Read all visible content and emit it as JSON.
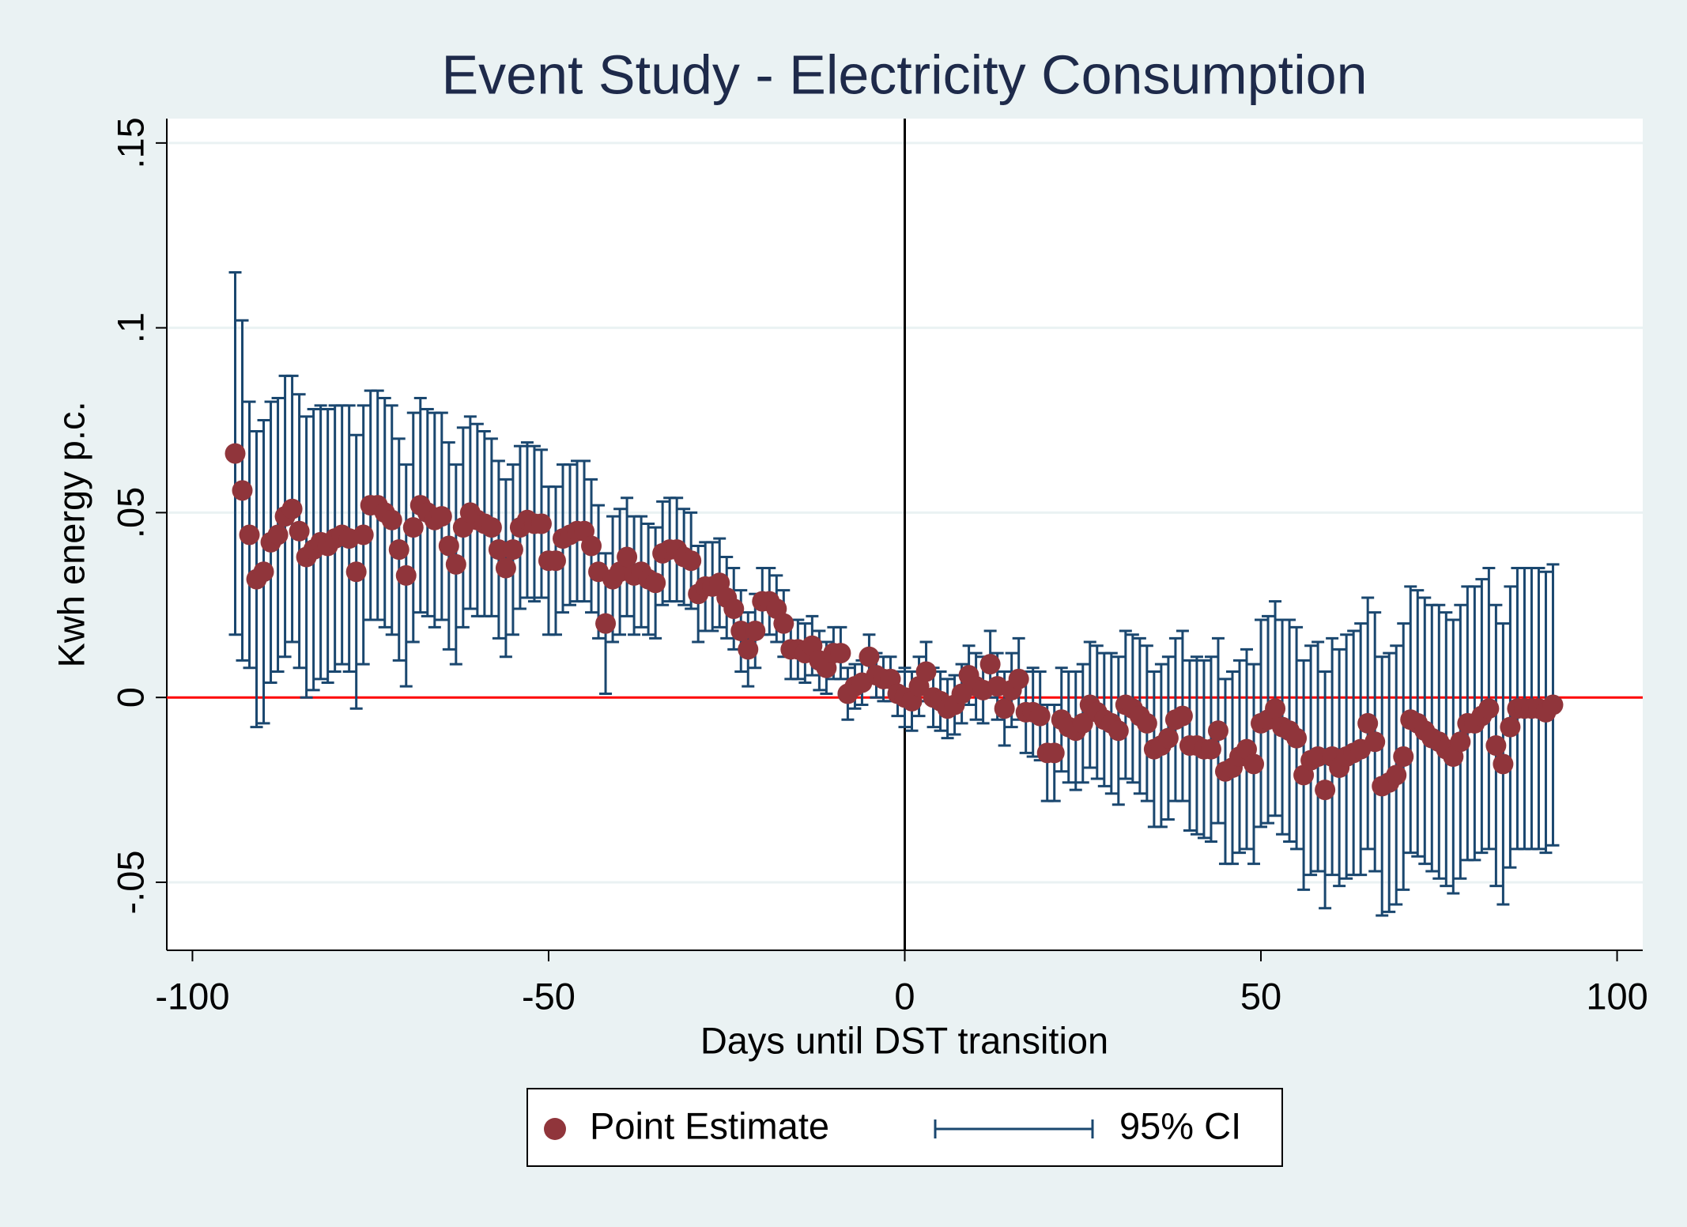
{
  "chart_data": {
    "type": "errorbar-scatter",
    "title": "Event Study - Electricity Consumption",
    "x_label": "Days until DST transition",
    "y_label": "Kwh energy p.c.",
    "xlim": [
      -103.6,
      103.6
    ],
    "xticks": [
      -100,
      -50,
      0,
      50,
      100
    ],
    "ylim": [
      -0.0684,
      0.1566
    ],
    "yticks": [
      {
        "value": -0.05,
        "label": "-.05"
      },
      0,
      {
        "value": 0.05,
        "label": ".05"
      },
      {
        "value": 0.1,
        "label": ".1"
      },
      {
        "value": 0.15,
        "label": ".15"
      }
    ],
    "grid": true,
    "reference_lines": {
      "x": 0,
      "x_color": "#000000",
      "y": 0,
      "y_color": "#ff0000"
    },
    "legend": "bottom",
    "x": [
      -94,
      -93,
      -92,
      -91,
      -90,
      -89,
      -88,
      -87,
      -86,
      -85,
      -84,
      -83,
      -82,
      -81,
      -80,
      -79,
      -78,
      -77,
      -76,
      -75,
      -74,
      -73,
      -72,
      -71,
      -70,
      -69,
      -68,
      -67,
      -66,
      -65,
      -64,
      -63,
      -62,
      -61,
      -60,
      -59,
      -58,
      -57,
      -56,
      -55,
      -54,
      -53,
      -52,
      -51,
      -50,
      -49,
      -48,
      -47,
      -46,
      -45,
      -44,
      -43,
      -42,
      -41,
      -40,
      -39,
      -38,
      -37,
      -36,
      -35,
      -34,
      -33,
      -32,
      -31,
      -30,
      -29,
      -28,
      -27,
      -26,
      -25,
      -24,
      -23,
      -22,
      -21,
      -20,
      -19,
      -18,
      -17,
      -16,
      -15,
      -14,
      -13,
      -12,
      -11,
      -10,
      -9,
      -8,
      -7,
      -6,
      -5,
      -4,
      -3,
      -2,
      -1,
      0,
      1,
      2,
      3,
      4,
      5,
      6,
      7,
      8,
      9,
      10,
      11,
      12,
      13,
      14,
      15,
      16,
      17,
      18,
      19,
      20,
      21,
      22,
      23,
      24,
      25,
      26,
      27,
      28,
      29,
      30,
      31,
      32,
      33,
      34,
      35,
      36,
      37,
      38,
      39,
      40,
      41,
      42,
      43,
      44,
      45,
      46,
      47,
      48,
      49,
      50,
      51,
      52,
      53,
      54,
      55,
      56,
      57,
      58,
      59,
      60,
      61,
      62,
      63,
      64,
      65,
      66,
      67,
      68,
      69,
      70,
      71,
      72,
      73,
      74,
      75,
      76,
      77,
      78,
      79,
      80,
      81,
      82,
      83,
      84,
      85,
      86,
      87,
      88,
      89,
      90,
      91
    ],
    "series": [
      {
        "name": "Point Estimate",
        "color": "#90353b",
        "error_name": "95% CI",
        "error_color": "#1a476f",
        "values": [
          0.066,
          0.056,
          0.044,
          0.032,
          0.034,
          0.042,
          0.044,
          0.049,
          0.051,
          0.045,
          0.038,
          0.04,
          0.042,
          0.041,
          0.043,
          0.044,
          0.043,
          0.034,
          0.044,
          0.052,
          0.052,
          0.05,
          0.048,
          0.04,
          0.033,
          0.046,
          0.052,
          0.05,
          0.048,
          0.049,
          0.041,
          0.036,
          0.046,
          0.05,
          0.048,
          0.047,
          0.046,
          0.04,
          0.035,
          0.04,
          0.046,
          0.048,
          0.047,
          0.047,
          0.037,
          0.037,
          0.043,
          0.044,
          0.045,
          0.045,
          0.041,
          0.034,
          0.02,
          0.032,
          0.034,
          0.038,
          0.033,
          0.034,
          0.032,
          0.031,
          0.039,
          0.04,
          0.04,
          0.038,
          0.037,
          0.028,
          0.03,
          0.03,
          0.031,
          0.027,
          0.024,
          0.018,
          0.013,
          0.018,
          0.026,
          0.026,
          0.024,
          0.02,
          0.013,
          0.013,
          0.012,
          0.014,
          0.01,
          0.008,
          0.012,
          0.012,
          0.001,
          0.003,
          0.004,
          0.011,
          0.006,
          0.005,
          0.005,
          0.001,
          0.0,
          -0.001,
          0.003,
          0.007,
          0.0,
          -0.001,
          -0.003,
          -0.002,
          0.001,
          0.006,
          0.003,
          0.002,
          0.009,
          0.003,
          -0.003,
          0.002,
          0.005,
          -0.004,
          -0.004,
          -0.005,
          -0.015,
          -0.015,
          -0.006,
          -0.008,
          -0.009,
          -0.007,
          -0.002,
          -0.004,
          -0.006,
          -0.007,
          -0.009,
          -0.002,
          -0.003,
          -0.005,
          -0.007,
          -0.014,
          -0.013,
          -0.011,
          -0.006,
          -0.005,
          -0.013,
          -0.013,
          -0.014,
          -0.014,
          -0.009,
          -0.02,
          -0.019,
          -0.016,
          -0.014,
          -0.018,
          -0.007,
          -0.006,
          -0.003,
          -0.008,
          -0.009,
          -0.011,
          -0.021,
          -0.017,
          -0.016,
          -0.025,
          -0.016,
          -0.019,
          -0.016,
          -0.015,
          -0.014,
          -0.007,
          -0.012,
          -0.024,
          -0.023,
          -0.021,
          -0.016,
          -0.006,
          -0.007,
          -0.009,
          -0.011,
          -0.012,
          -0.014,
          -0.016,
          -0.012,
          -0.007,
          -0.007,
          -0.005,
          -0.003,
          -0.013,
          -0.018,
          -0.008,
          -0.003,
          -0.003,
          -0.003,
          -0.003,
          -0.004,
          -0.002
        ],
        "errors": [
          0.049,
          0.046,
          0.036,
          0.04,
          0.041,
          0.038,
          0.037,
          0.038,
          0.036,
          0.037,
          0.038,
          0.038,
          0.037,
          0.037,
          0.036,
          0.035,
          0.036,
          0.037,
          0.035,
          0.031,
          0.031,
          0.031,
          0.031,
          0.03,
          0.03,
          0.031,
          0.029,
          0.028,
          0.029,
          0.028,
          0.028,
          0.027,
          0.027,
          0.026,
          0.026,
          0.025,
          0.024,
          0.024,
          0.024,
          0.023,
          0.022,
          0.021,
          0.021,
          0.02,
          0.02,
          0.02,
          0.02,
          0.019,
          0.019,
          0.019,
          0.018,
          0.018,
          0.019,
          0.017,
          0.017,
          0.016,
          0.016,
          0.015,
          0.015,
          0.015,
          0.014,
          0.014,
          0.014,
          0.013,
          0.013,
          0.013,
          0.012,
          0.012,
          0.012,
          0.011,
          0.011,
          0.011,
          0.01,
          0.01,
          0.009,
          0.009,
          0.009,
          0.009,
          0.008,
          0.008,
          0.008,
          0.008,
          0.008,
          0.007,
          0.007,
          0.007,
          0.007,
          0.006,
          0.006,
          0.006,
          0.006,
          0.006,
          0.006,
          0.006,
          0.008,
          0.008,
          0.008,
          0.008,
          0.008,
          0.008,
          0.008,
          0.008,
          0.008,
          0.008,
          0.009,
          0.009,
          0.009,
          0.009,
          0.01,
          0.01,
          0.011,
          0.011,
          0.012,
          0.012,
          0.013,
          0.013,
          0.014,
          0.015,
          0.016,
          0.016,
          0.017,
          0.018,
          0.018,
          0.019,
          0.02,
          0.02,
          0.02,
          0.021,
          0.021,
          0.021,
          0.022,
          0.022,
          0.022,
          0.023,
          0.023,
          0.024,
          0.024,
          0.025,
          0.025,
          0.025,
          0.026,
          0.026,
          0.027,
          0.027,
          0.028,
          0.028,
          0.029,
          0.029,
          0.03,
          0.03,
          0.031,
          0.031,
          0.031,
          0.032,
          0.032,
          0.032,
          0.033,
          0.033,
          0.034,
          0.034,
          0.035,
          0.035,
          0.035,
          0.035,
          0.036,
          0.036,
          0.036,
          0.036,
          0.036,
          0.037,
          0.037,
          0.037,
          0.037,
          0.037,
          0.037,
          0.037,
          0.038,
          0.038,
          0.038,
          0.038,
          0.038,
          0.038,
          0.038,
          0.038,
          0.038,
          0.038
        ]
      }
    ]
  }
}
